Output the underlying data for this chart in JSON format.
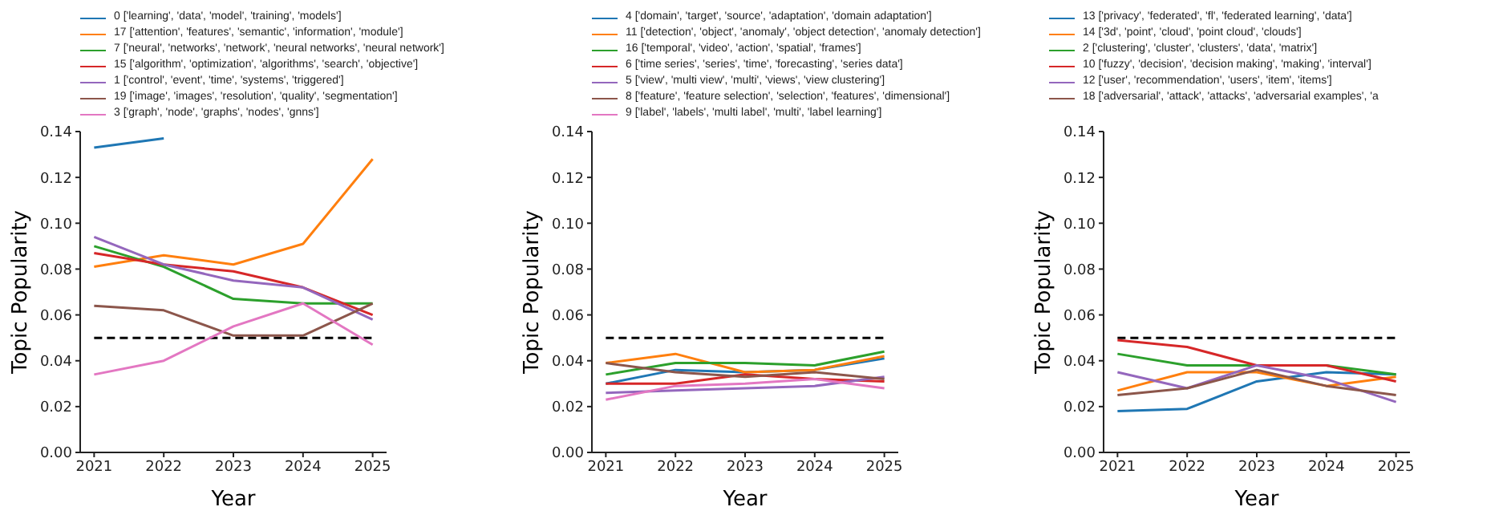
{
  "chart_data": [
    {
      "type": "line",
      "xlabel": "Year",
      "ylabel": "Topic Popularity",
      "x": [
        2021,
        2022,
        2023,
        2024,
        2025
      ],
      "xlim": [
        2020.8,
        2025.2
      ],
      "xticks": [
        2021,
        2022,
        2023,
        2024,
        2025
      ],
      "ylim": [
        0,
        0.14
      ],
      "yticks": [
        {
          "value": 0,
          "label": "0.00"
        },
        {
          "value": 0.02,
          "label": "0.02"
        },
        {
          "value": 0.04,
          "label": "0.04"
        },
        {
          "value": 0.06,
          "label": "0.06"
        },
        {
          "value": 0.08,
          "label": "0.08"
        },
        {
          "value": 0.1,
          "label": "0.10"
        },
        {
          "value": 0.12,
          "label": "0.12"
        },
        {
          "value": 0.14,
          "label": "0.14"
        }
      ],
      "legend": "top",
      "grid": false,
      "line_style": "solid",
      "marker": "none",
      "ref_lines": [
        {
          "axis": "y",
          "value": 0.05,
          "color": "#000000",
          "line_style": "dashed"
        }
      ],
      "series": [
        {
          "name": "0 ['learning', 'data', 'model', 'training', 'models']",
          "color": "#1f77b4",
          "values": [
            0.133,
            0.137,
            null,
            null,
            null
          ]
        },
        {
          "name": "17 ['attention', 'features', 'semantic', 'information', 'module']",
          "color": "#ff7f0e",
          "values": [
            0.081,
            0.086,
            0.082,
            0.091,
            0.128
          ]
        },
        {
          "name": "7 ['neural', 'networks', 'network', 'neural networks', 'neural network']",
          "color": "#2ca02c",
          "values": [
            0.09,
            0.081,
            0.067,
            0.065,
            0.065
          ]
        },
        {
          "name": "15 ['algorithm', 'optimization', 'algorithms', 'search', 'objective']",
          "color": "#d62728",
          "values": [
            0.087,
            0.082,
            0.079,
            0.072,
            0.06
          ]
        },
        {
          "name": "1 ['control', 'event', 'time', 'systems', 'triggered']",
          "color": "#9467bd",
          "values": [
            0.094,
            0.082,
            0.075,
            0.072,
            0.058
          ]
        },
        {
          "name": "19 ['image', 'images', 'resolution', 'quality', 'segmentation']",
          "color": "#8c564b",
          "values": [
            0.064,
            0.062,
            0.051,
            0.051,
            0.065
          ]
        },
        {
          "name": "3 ['graph', 'node', 'graphs', 'nodes', 'gnns']",
          "color": "#e377c2",
          "values": [
            0.034,
            0.04,
            0.055,
            0.065,
            0.047
          ]
        }
      ]
    },
    {
      "type": "line",
      "xlabel": "Year",
      "ylabel": "Topic Popularity",
      "x": [
        2021,
        2022,
        2023,
        2024,
        2025
      ],
      "xlim": [
        2020.8,
        2025.2
      ],
      "xticks": [
        2021,
        2022,
        2023,
        2024,
        2025
      ],
      "ylim": [
        0,
        0.14
      ],
      "yticks": [
        {
          "value": 0,
          "label": "0.00"
        },
        {
          "value": 0.02,
          "label": "0.02"
        },
        {
          "value": 0.04,
          "label": "0.04"
        },
        {
          "value": 0.06,
          "label": "0.06"
        },
        {
          "value": 0.08,
          "label": "0.08"
        },
        {
          "value": 0.1,
          "label": "0.10"
        },
        {
          "value": 0.12,
          "label": "0.12"
        },
        {
          "value": 0.14,
          "label": "0.14"
        }
      ],
      "legend": "top",
      "grid": false,
      "line_style": "solid",
      "marker": "none",
      "ref_lines": [
        {
          "axis": "y",
          "value": 0.05,
          "color": "#000000",
          "line_style": "dashed"
        }
      ],
      "series": [
        {
          "name": "4 ['domain', 'target', 'source', 'adaptation', 'domain adaptation']",
          "color": "#1f77b4",
          "values": [
            0.03,
            0.036,
            0.035,
            0.036,
            0.041
          ]
        },
        {
          "name": "11 ['detection', 'object', 'anomaly', 'object detection', 'anomaly detection']",
          "color": "#ff7f0e",
          "values": [
            0.039,
            0.043,
            0.035,
            0.036,
            0.042
          ]
        },
        {
          "name": "16 ['temporal', 'video', 'action', 'spatial', 'frames']",
          "color": "#2ca02c",
          "values": [
            0.034,
            0.039,
            0.039,
            0.038,
            0.044
          ]
        },
        {
          "name": "6 ['time series', 'series', 'time', 'forecasting', 'series data']",
          "color": "#d62728",
          "values": [
            0.03,
            0.03,
            0.034,
            0.032,
            0.031
          ]
        },
        {
          "name": "5 ['view', 'multi view', 'multi', 'views', 'view clustering']",
          "color": "#9467bd",
          "values": [
            0.026,
            0.027,
            0.028,
            0.029,
            0.033
          ]
        },
        {
          "name": "8 ['feature', 'feature selection', 'selection', 'features', 'dimensional']",
          "color": "#8c564b",
          "values": [
            0.039,
            0.035,
            0.033,
            0.035,
            0.032
          ]
        },
        {
          "name": "9 ['label', 'labels', 'multi label', 'multi', 'label learning']",
          "color": "#e377c2",
          "values": [
            0.023,
            0.029,
            0.03,
            0.032,
            0.028
          ]
        }
      ]
    },
    {
      "type": "line",
      "xlabel": "Year",
      "ylabel": "Topic Popularity",
      "x": [
        2021,
        2022,
        2023,
        2024,
        2025
      ],
      "xlim": [
        2020.8,
        2025.2
      ],
      "xticks": [
        2021,
        2022,
        2023,
        2024,
        2025
      ],
      "ylim": [
        0,
        0.14
      ],
      "yticks": [
        {
          "value": 0,
          "label": "0.00"
        },
        {
          "value": 0.02,
          "label": "0.02"
        },
        {
          "value": 0.04,
          "label": "0.04"
        },
        {
          "value": 0.06,
          "label": "0.06"
        },
        {
          "value": 0.08,
          "label": "0.08"
        },
        {
          "value": 0.1,
          "label": "0.10"
        },
        {
          "value": 0.12,
          "label": "0.12"
        },
        {
          "value": 0.14,
          "label": "0.14"
        }
      ],
      "legend": "top",
      "grid": false,
      "line_style": "solid",
      "marker": "none",
      "ref_lines": [
        {
          "axis": "y",
          "value": 0.05,
          "color": "#000000",
          "line_style": "dashed"
        }
      ],
      "series": [
        {
          "name": "13 ['privacy', 'federated', 'fl', 'federated learning', 'data']",
          "color": "#1f77b4",
          "values": [
            0.018,
            0.019,
            0.031,
            0.035,
            0.034
          ]
        },
        {
          "name": "14 ['3d', 'point', 'cloud', 'point cloud', 'clouds']",
          "color": "#ff7f0e",
          "values": [
            0.027,
            0.035,
            0.035,
            0.029,
            0.033
          ]
        },
        {
          "name": "2 ['clustering', 'cluster', 'clusters', 'data', 'matrix']",
          "color": "#2ca02c",
          "values": [
            0.043,
            0.038,
            0.038,
            0.038,
            0.034
          ]
        },
        {
          "name": "10 ['fuzzy', 'decision', 'decision making', 'making', 'interval']",
          "color": "#d62728",
          "values": [
            0.049,
            0.046,
            0.038,
            0.038,
            0.031
          ]
        },
        {
          "name": "12 ['user', 'recommendation', 'users', 'item', 'items']",
          "color": "#9467bd",
          "values": [
            0.035,
            0.028,
            0.038,
            0.032,
            0.022
          ]
        },
        {
          "name": "18 ['adversarial', 'attack', 'attacks', 'adversarial examples', 'a",
          "color": "#8c564b",
          "values": [
            0.025,
            0.028,
            0.036,
            0.029,
            0.025
          ]
        }
      ]
    }
  ]
}
